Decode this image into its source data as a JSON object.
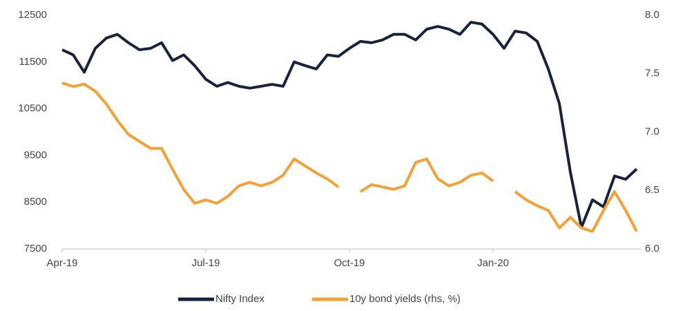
{
  "chart_data": {
    "type": "line",
    "categories": [
      "Apr-19",
      null,
      null,
      null,
      null,
      null,
      null,
      null,
      null,
      null,
      null,
      null,
      null,
      "Jul-19",
      null,
      null,
      null,
      null,
      null,
      null,
      null,
      null,
      null,
      null,
      null,
      null,
      "Oct-19",
      null,
      null,
      null,
      null,
      null,
      null,
      null,
      null,
      null,
      null,
      null,
      null,
      "Jan-20",
      null,
      null,
      null,
      null,
      null,
      null,
      null,
      null,
      null,
      null,
      null,
      null,
      null
    ],
    "series": [
      {
        "name": "Nifty Index",
        "color": "#17223f",
        "values": [
          11760,
          11650,
          11280,
          11790,
          12010,
          12090,
          11910,
          11760,
          11790,
          11910,
          11530,
          11650,
          11420,
          11130,
          10980,
          11060,
          10980,
          10940,
          10980,
          11020,
          10980,
          11500,
          11420,
          11350,
          11650,
          11620,
          11790,
          11940,
          11910,
          11970,
          12090,
          12090,
          11970,
          12200,
          12260,
          12200,
          12090,
          12350,
          12310,
          12090,
          11790,
          12160,
          12120,
          11940,
          11350,
          10610,
          9140,
          7960,
          8550,
          8400,
          9060,
          8990,
          9210
        ]
      },
      {
        "name": "10y bond yields (rhs, %)",
        "color": "#f5a035",
        "axis": "y2",
        "values": [
          7.42,
          7.39,
          7.41,
          7.35,
          7.24,
          7.1,
          6.98,
          6.92,
          6.86,
          6.86,
          6.68,
          6.51,
          6.39,
          6.42,
          6.39,
          6.45,
          6.54,
          6.57,
          6.54,
          6.57,
          6.63,
          6.77,
          6.71,
          6.65,
          6.6,
          6.53,
          null,
          6.49,
          6.55,
          6.53,
          6.51,
          6.54,
          6.74,
          6.77,
          6.6,
          6.54,
          6.57,
          6.63,
          6.65,
          6.58,
          null,
          6.49,
          6.42,
          6.37,
          6.33,
          6.18,
          6.27,
          6.18,
          6.15,
          6.33,
          6.49,
          6.33,
          6.15
        ]
      }
    ],
    "ylim": [
      7500,
      12500
    ],
    "yticks": [
      7500,
      8500,
      9500,
      10500,
      11500,
      12500
    ],
    "y2lim": [
      6,
      8
    ],
    "y2ticks": [
      {
        "value": 6,
        "label": "6.0"
      },
      6.5,
      {
        "value": 7,
        "label": "7.0"
      },
      7.5,
      {
        "value": 8,
        "label": "8.0"
      }
    ],
    "legend": "bottom"
  }
}
